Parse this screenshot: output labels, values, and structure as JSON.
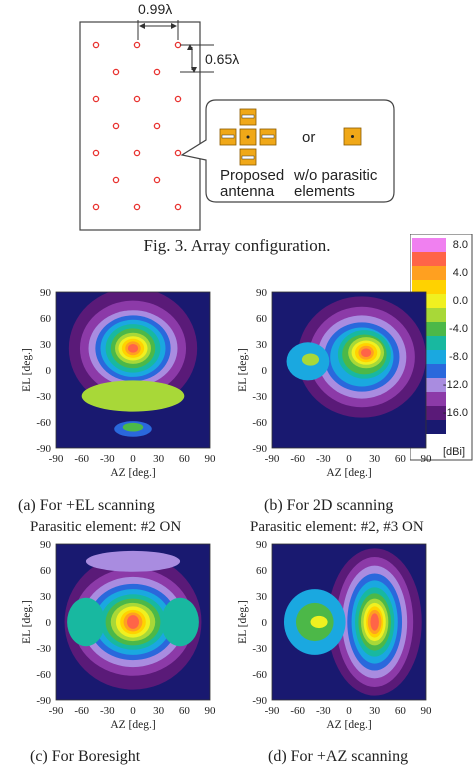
{
  "array_figure": {
    "spacing_h": "0.99λ",
    "spacing_v": "0.65λ",
    "element_label_1": "Proposed",
    "element_label_2": "antenna",
    "or_text": "or",
    "alt_label_1": "w/o parasitic",
    "alt_label_2": "elements",
    "caption": "Fig. 3. Array configuration.",
    "colors": {
      "element_dot": "#e8312e",
      "patch": "#f0a818"
    }
  },
  "legend": {
    "ticks": [
      "8.0",
      "4.0",
      "0.0",
      "-4.0",
      "-8.0",
      "-12.0",
      "-16.0"
    ],
    "unit": "[dBi]",
    "colors": [
      "#191970",
      "#5a1a78",
      "#8c3aa8",
      "#a98ce0",
      "#2a68dc",
      "#1aa8e0",
      "#18b8a0",
      "#4cb848",
      "#a8d838",
      "#f0f020",
      "#ffd200",
      "#ffa020",
      "#ff6448",
      "#f080f0"
    ]
  },
  "panels": [
    {
      "caption": "(a) For +EL scanning",
      "subcaption": "Parasitic element: #2 ON",
      "xlabel": "AZ [deg.]",
      "ylabel": "EL [deg.]"
    },
    {
      "caption": "(b) For 2D scanning",
      "subcaption": "Parasitic element: #2, #3 ON",
      "xlabel": "AZ [deg.]",
      "ylabel": "EL [deg.]"
    },
    {
      "caption": "(c) For Boresight",
      "subcaption": "",
      "xlabel": "AZ [deg.]",
      "ylabel": "EL [deg.]"
    },
    {
      "caption": "(d) For +AZ scanning",
      "subcaption": "",
      "xlabel": "AZ [deg.]",
      "ylabel": "EL [deg.]"
    }
  ],
  "chart_data": [
    {
      "type": "heatmap",
      "title": "(a) For +EL scanning",
      "xlabel": "AZ [deg.]",
      "ylabel": "EL [deg.]",
      "xlim": [
        -90,
        90
      ],
      "ylim": [
        -90,
        90
      ],
      "x_ticks": [
        "-90",
        "-60",
        "-30",
        "0",
        "30",
        "60",
        "90"
      ],
      "y_ticks": [
        "90",
        "60",
        "30",
        "0",
        "-30",
        "-60",
        "-90"
      ],
      "peak_dBi": 8.0,
      "peak_at": [
        0,
        25
      ]
    },
    {
      "type": "heatmap",
      "title": "(b) For 2D scanning",
      "xlabel": "AZ [deg.]",
      "ylabel": "EL [deg.]",
      "xlim": [
        -90,
        90
      ],
      "ylim": [
        -90,
        90
      ],
      "x_ticks": [
        "-90",
        "-60",
        "-30",
        "0",
        "30",
        "60",
        "90"
      ],
      "y_ticks": [
        "90",
        "60",
        "30",
        "0",
        "-30",
        "-60",
        "-90"
      ],
      "peak_dBi": 8.0,
      "peak_at": [
        20,
        20
      ]
    },
    {
      "type": "heatmap",
      "title": "(c) For Boresight",
      "xlabel": "AZ [deg.]",
      "ylabel": "EL [deg.]",
      "xlim": [
        -90,
        90
      ],
      "ylim": [
        -90,
        90
      ],
      "x_ticks": [
        "-90",
        "-60",
        "-30",
        "0",
        "30",
        "60",
        "90"
      ],
      "y_ticks": [
        "90",
        "60",
        "30",
        "0",
        "-30",
        "-60",
        "-90"
      ],
      "peak_dBi": 8.0,
      "peak_at": [
        0,
        0
      ]
    },
    {
      "type": "heatmap",
      "title": "(d) For +AZ scanning",
      "xlabel": "AZ [deg.]",
      "ylabel": "EL [deg.]",
      "xlim": [
        -90,
        90
      ],
      "ylim": [
        -90,
        90
      ],
      "x_ticks": [
        "-90",
        "-60",
        "-30",
        "0",
        "30",
        "60",
        "90"
      ],
      "y_ticks": [
        "90",
        "60",
        "30",
        "0",
        "-30",
        "-60",
        "-90"
      ],
      "peak_dBi": 8.0,
      "peak_at": [
        30,
        0
      ]
    }
  ]
}
